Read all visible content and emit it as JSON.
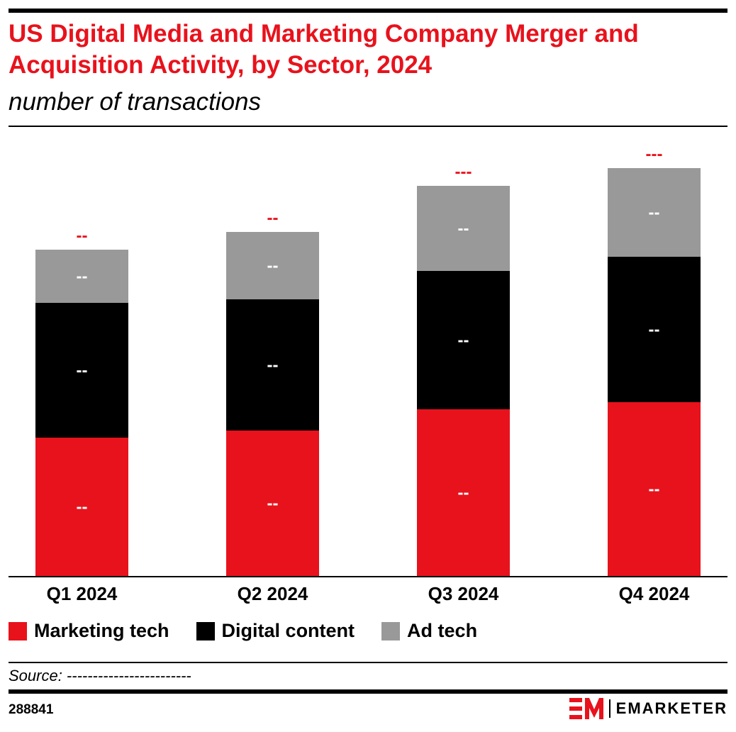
{
  "title": "US Digital Media and Marketing Company Merger and Acquisition Activity, by Sector, 2024",
  "subtitle": "number of transactions",
  "source": "Source: ------------------------",
  "chart_id": "288841",
  "brand": {
    "logo_text": "EMARKETER",
    "logo_mark": "EM"
  },
  "colors": {
    "marketing_tech": "#e8121c",
    "digital_content": "#000000",
    "ad_tech": "#999999",
    "accent": "#e8121c"
  },
  "chart_data": {
    "type": "bar",
    "stacked": true,
    "categories": [
      "Q1 2024",
      "Q2 2024",
      "Q3 2024",
      "Q4 2024"
    ],
    "series": [
      {
        "name": "Marketing tech",
        "values": [
          39,
          41,
          47,
          49
        ],
        "labels": [
          "--",
          "--",
          "--",
          "--"
        ]
      },
      {
        "name": "Digital content",
        "values": [
          38,
          37,
          39,
          41
        ],
        "labels": [
          "--",
          "--",
          "--",
          "--"
        ]
      },
      {
        "name": "Ad tech",
        "values": [
          15,
          19,
          24,
          25
        ],
        "labels": [
          "--",
          "--",
          "--",
          "--"
        ]
      }
    ],
    "total_labels": [
      "--",
      "--",
      "---",
      "---"
    ],
    "grid": false,
    "legend": "bottom-left"
  }
}
